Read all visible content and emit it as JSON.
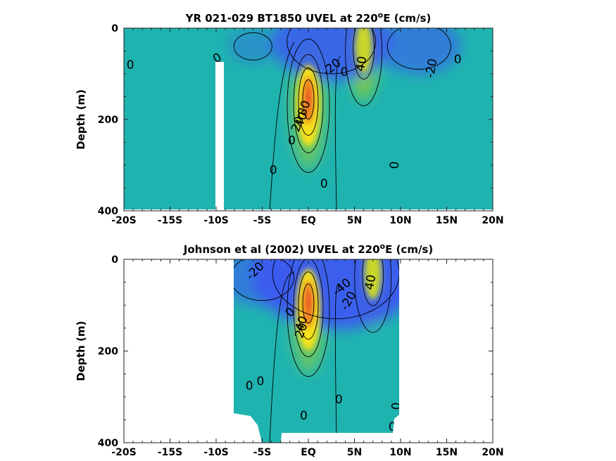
{
  "chart_data": [
    {
      "type": "heatmap",
      "title": "YR 021-029 BT1850 UVEL at 220",
      "title_sup": "o",
      "title_tail": "E (cm/s)",
      "ylabel": "Depth (m)",
      "xlim": [
        -20,
        20
      ],
      "ylim": [
        0,
        400
      ],
      "x_ticks": [
        -20,
        -15,
        -10,
        -5,
        0,
        5,
        10,
        15,
        20
      ],
      "x_tick_labels": [
        "-20S",
        "-15S",
        "-10S",
        "-5S",
        "EQ",
        "5N",
        "10N",
        "15N",
        "20N"
      ],
      "y_ticks": [
        0,
        200,
        400
      ],
      "y_tick_labels": [
        "0",
        "200",
        "400"
      ],
      "colors": {
        "low": "#3b5bf0",
        "mid": "#1fb3b0",
        "high": "#f5e21c",
        "peak": "#f07a20"
      },
      "features": [
        {
          "kind": "undercurrent",
          "lat": 0,
          "depth": 170,
          "speed": 90
        },
        {
          "kind": "NECC",
          "lat": 6,
          "depth": 50,
          "speed": 45
        },
        {
          "kind": "SEC_north",
          "lat": 2.5,
          "depth": 30,
          "speed": -35
        },
        {
          "kind": "NEC",
          "lat": 12,
          "depth": 40,
          "speed": -25
        },
        {
          "kind": "SEC_south",
          "lat": -6,
          "depth": 40,
          "speed": -15
        }
      ],
      "contour_labels": [
        {
          "text": "0",
          "lat": -19.3,
          "depth": 80,
          "rot": 0
        },
        {
          "text": "0",
          "lat": -9.9,
          "depth": 65,
          "rot": -30
        },
        {
          "text": "-20",
          "lat": 2.5,
          "depth": 85,
          "rot": -40
        },
        {
          "text": "0",
          "lat": 3.9,
          "depth": 95,
          "rot": 0
        },
        {
          "text": "40",
          "lat": 5.7,
          "depth": 78,
          "rot": -80
        },
        {
          "text": "-20",
          "lat": 13.3,
          "depth": 88,
          "rot": -80
        },
        {
          "text": "0",
          "lat": 16.2,
          "depth": 68,
          "rot": 0
        },
        {
          "text": "80",
          "lat": -0.5,
          "depth": 175,
          "rot": -70
        },
        {
          "text": "20",
          "lat": -1.2,
          "depth": 210,
          "rot": -70
        },
        {
          "text": "40",
          "lat": -0.8,
          "depth": 200,
          "rot": -70
        },
        {
          "text": "0",
          "lat": -1.8,
          "depth": 245,
          "rot": 0
        },
        {
          "text": "0",
          "lat": -3.8,
          "depth": 310,
          "rot": 0
        },
        {
          "text": "0",
          "lat": 1.7,
          "depth": 340,
          "rot": 0
        },
        {
          "text": "0",
          "lat": 9.3,
          "depth": 300,
          "rot": -85
        }
      ]
    },
    {
      "type": "heatmap",
      "title": "Johnson et al (2002) UVEL at 220",
      "title_sup": "o",
      "title_tail": "E (cm/s)",
      "ylabel": "Depth (m)",
      "xlim": [
        -20,
        20
      ],
      "ylim": [
        0,
        400
      ],
      "x_ticks": [
        -20,
        -15,
        -10,
        -5,
        0,
        5,
        10,
        15,
        20
      ],
      "x_tick_labels": [
        "-20S",
        "-15S",
        "-10S",
        "-5S",
        "EQ",
        "5N",
        "10N",
        "15N",
        "20N"
      ],
      "y_ticks": [
        0,
        200,
        400
      ],
      "y_tick_labels": [
        "0",
        "200",
        "400"
      ],
      "data_coverage": {
        "lat_min": -8,
        "lat_max": 10,
        "depth_max_south": 335,
        "depth_max_north": 360
      },
      "colors": {
        "low": "#3b5bf0",
        "mid": "#1fb3b0",
        "high": "#f5e21c",
        "peak": "#f07a20"
      },
      "features": [
        {
          "kind": "undercurrent",
          "lat": 0,
          "depth": 110,
          "speed": 100
        },
        {
          "kind": "NECC",
          "lat": 7,
          "depth": 40,
          "speed": 45
        },
        {
          "kind": "SEC_north",
          "lat": 3,
          "depth": 30,
          "speed": -50
        },
        {
          "kind": "SEC_south",
          "lat": -5,
          "depth": 40,
          "speed": -25
        }
      ],
      "contour_labels": [
        {
          "text": "-20",
          "lat": -5.8,
          "depth": 25,
          "rot": -45
        },
        {
          "text": "-40",
          "lat": 3.6,
          "depth": 60,
          "rot": -40
        },
        {
          "text": "-20",
          "lat": 4.3,
          "depth": 90,
          "rot": -60
        },
        {
          "text": "40",
          "lat": 6.7,
          "depth": 50,
          "rot": -80
        },
        {
          "text": "0",
          "lat": -2,
          "depth": 115,
          "rot": -45
        },
        {
          "text": "40",
          "lat": -0.8,
          "depth": 140,
          "rot": -70
        },
        {
          "text": "20",
          "lat": -0.8,
          "depth": 155,
          "rot": -70
        },
        {
          "text": "0",
          "lat": -6.4,
          "depth": 275,
          "rot": 0
        },
        {
          "text": "0",
          "lat": -5.2,
          "depth": 265,
          "rot": 0
        },
        {
          "text": "0",
          "lat": 3.3,
          "depth": 305,
          "rot": 0
        },
        {
          "text": "0",
          "lat": -0.5,
          "depth": 340,
          "rot": 0
        },
        {
          "text": "0",
          "lat": 9.5,
          "depth": 320,
          "rot": -85
        },
        {
          "text": "0",
          "lat": 9.1,
          "depth": 365,
          "rot": 0
        }
      ]
    }
  ]
}
